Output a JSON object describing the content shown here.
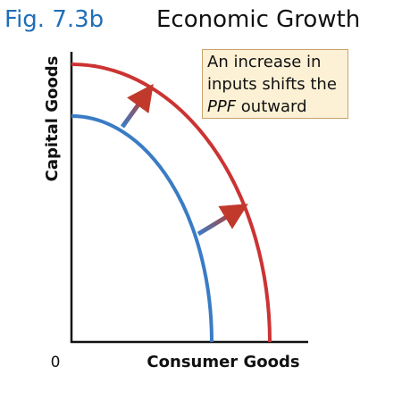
{
  "figure": {
    "label": "Fig. 7.3b",
    "title": "Economic Growth"
  },
  "axes": {
    "y_label": "Capital Goods",
    "x_label": "Consumer Goods",
    "origin": "0"
  },
  "annotation": {
    "lines": [
      "An increase in",
      "inputs shifts the"
    ],
    "emphasis": "PPF",
    "tail": "outward"
  }
}
